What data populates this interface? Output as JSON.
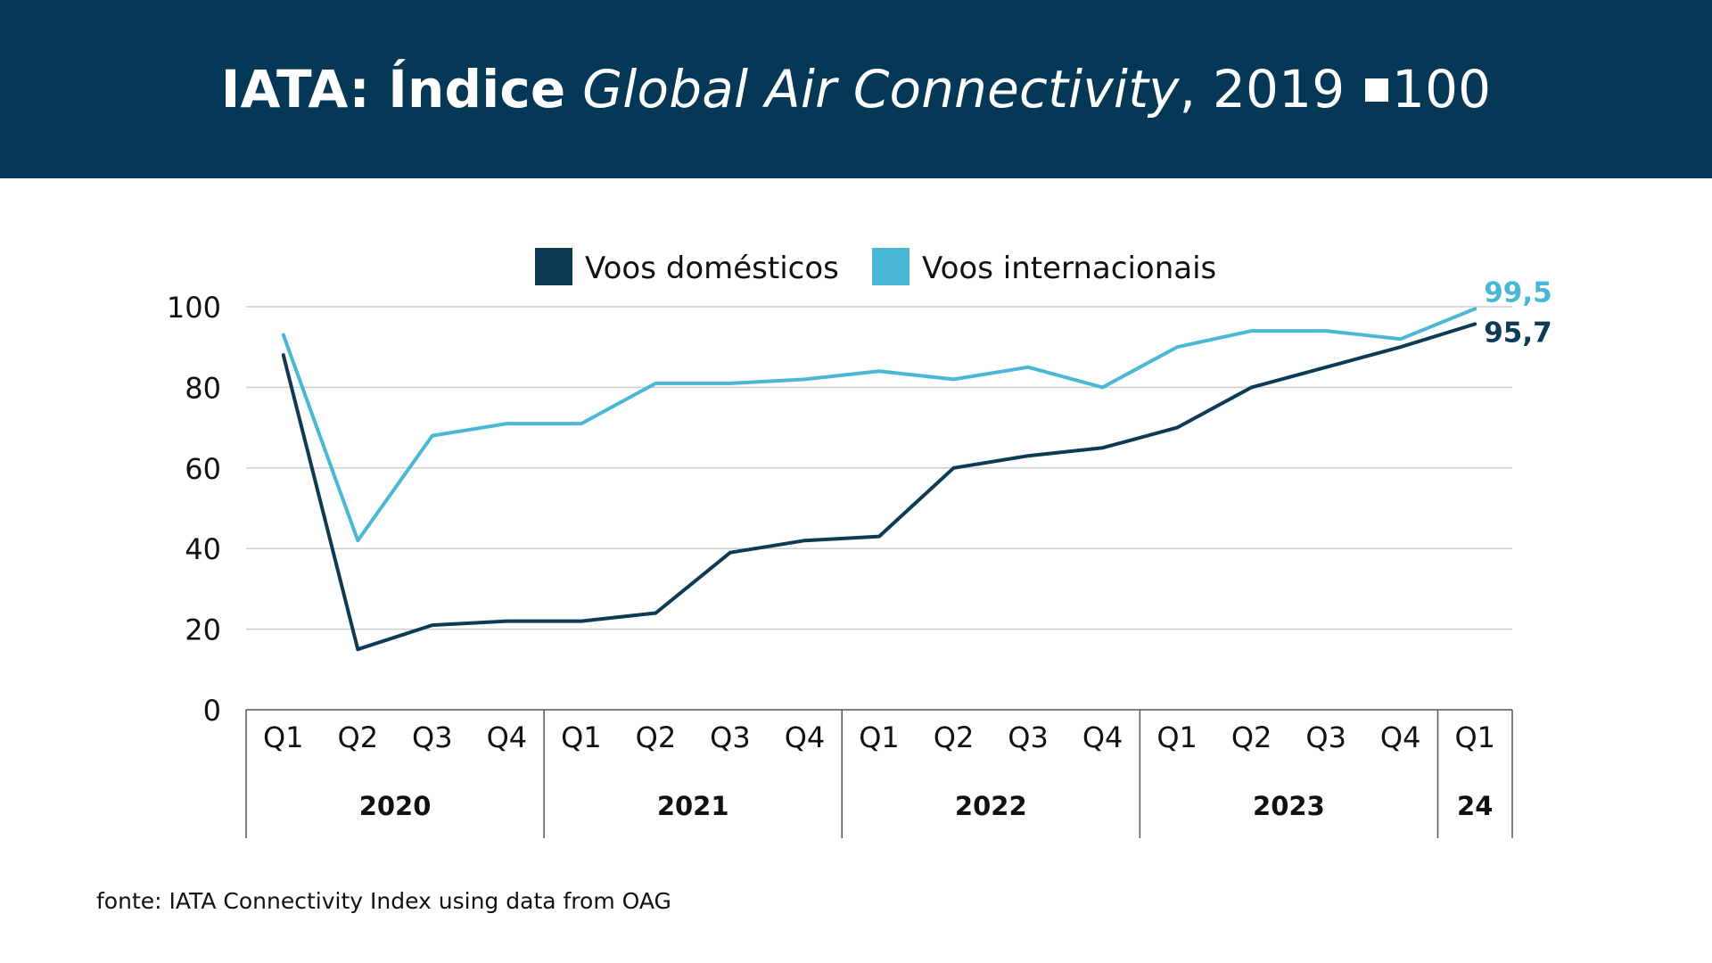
{
  "header": {
    "title_bold": "IATA: Índice",
    "title_italic": "Global Air Connectivity",
    "title_comma": ",",
    "title_year": "2019",
    "title_value": "100",
    "background": "#053857"
  },
  "source": "fonte: IATA Connectivity Index using data from OAG",
  "chart_data": {
    "type": "line",
    "title": "IATA: Índice Global Air Connectivity, 2019 ■ 100",
    "categories": [
      "Q1",
      "Q2",
      "Q3",
      "Q4",
      "Q1",
      "Q2",
      "Q3",
      "Q4",
      "Q1",
      "Q2",
      "Q3",
      "Q4",
      "Q1",
      "Q2",
      "Q3",
      "Q4",
      "Q1"
    ],
    "year_groups": [
      {
        "label": "2020",
        "count": 4
      },
      {
        "label": "2021",
        "count": 4
      },
      {
        "label": "2022",
        "count": 4
      },
      {
        "label": "2023",
        "count": 4
      },
      {
        "label": "24",
        "count": 1
      }
    ],
    "series": [
      {
        "name": "Voos domésticos",
        "color": "#0d3a55",
        "values": [
          88,
          15,
          21,
          22,
          22,
          24,
          39,
          42,
          43,
          60,
          63,
          65,
          70,
          80,
          85,
          90,
          95.7
        ],
        "end_label": "95,7"
      },
      {
        "name": "Voos internacionais",
        "color": "#4ab8d5",
        "values": [
          93,
          42,
          68,
          71,
          71,
          81,
          81,
          82,
          84,
          82,
          85,
          80,
          90,
          94,
          94,
          92,
          99.5
        ],
        "end_label": "99,5"
      }
    ],
    "ylim": [
      0,
      100
    ],
    "yticks": [
      0,
      20,
      40,
      60,
      80,
      100
    ],
    "grid": true,
    "legend": "top-center",
    "xlabel": "",
    "ylabel": ""
  }
}
